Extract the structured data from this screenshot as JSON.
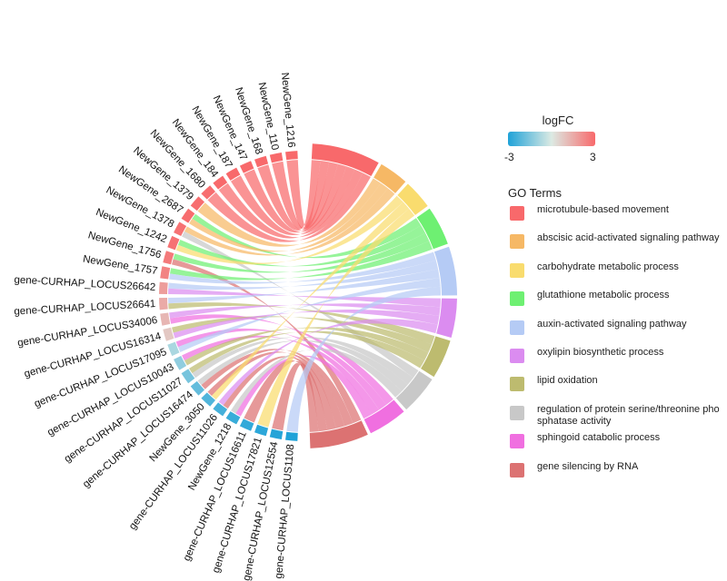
{
  "chart_data": {
    "type": "chord",
    "genes": [
      {
        "name": "NewGene_1216",
        "logFC": 3,
        "terms": [
          0
        ]
      },
      {
        "name": "NewGene_110",
        "logFC": 3,
        "terms": [
          0
        ]
      },
      {
        "name": "NewGene_168",
        "logFC": 3,
        "terms": [
          0
        ]
      },
      {
        "name": "NewGene_147",
        "logFC": 3,
        "terms": [
          0
        ]
      },
      {
        "name": "NewGene_187",
        "logFC": 3,
        "terms": [
          0
        ]
      },
      {
        "name": "NewGene_184",
        "logFC": 3,
        "terms": [
          0
        ]
      },
      {
        "name": "NewGene_1680",
        "logFC": 2.9,
        "terms": [
          0
        ]
      },
      {
        "name": "NewGene_1379",
        "logFC": 2.9,
        "terms": [
          1
        ]
      },
      {
        "name": "NewGene_2687",
        "logFC": 2.9,
        "terms": [
          3,
          1
        ]
      },
      {
        "name": "NewGene_1378",
        "logFC": 2.8,
        "terms": [
          1,
          7
        ]
      },
      {
        "name": "NewGene_1242",
        "logFC": 2.8,
        "terms": [
          3,
          2
        ]
      },
      {
        "name": "NewGene_1756",
        "logFC": 2.6,
        "terms": [
          3,
          9
        ]
      },
      {
        "name": "NewGene_1757",
        "logFC": 2.4,
        "terms": [
          3,
          4
        ]
      },
      {
        "name": "gene-CURHAP_LOCUS26642",
        "logFC": 1.8,
        "terms": [
          4,
          5
        ]
      },
      {
        "name": "gene-CURHAP_LOCUS26641",
        "logFC": 1.5,
        "terms": [
          4,
          6
        ]
      },
      {
        "name": "gene-CURHAP_LOCUS34006",
        "logFC": 1.2,
        "terms": [
          5,
          8
        ]
      },
      {
        "name": "gene-CURHAP_LOCUS16314",
        "logFC": 0.8,
        "terms": [
          6,
          5
        ]
      },
      {
        "name": "gene-CURHAP_LOCUS17095",
        "logFC": -0.8,
        "terms": [
          8,
          4
        ]
      },
      {
        "name": "gene-CURHAP_LOCUS10043",
        "logFC": -1.2,
        "terms": [
          8,
          6
        ]
      },
      {
        "name": "gene-CURHAP_LOCUS11027",
        "logFC": -1.6,
        "terms": [
          6,
          7
        ]
      },
      {
        "name": "gene-CURHAP_LOCUS16474",
        "logFC": -1.9,
        "terms": [
          7,
          9
        ]
      },
      {
        "name": "NewGene_3050",
        "logFC": -2.2,
        "terms": [
          9,
          2
        ]
      },
      {
        "name": "gene-CURHAP_LOCUS11026",
        "logFC": -2.4,
        "terms": [
          5,
          9
        ]
      },
      {
        "name": "NewGene_1218",
        "logFC": -2.6,
        "terms": [
          7,
          8
        ]
      },
      {
        "name": "gene-CURHAP_LOCUS16611",
        "logFC": -2.7,
        "terms": [
          9
        ]
      },
      {
        "name": "gene-CURHAP_LOCUS17821",
        "logFC": -2.8,
        "terms": [
          2
        ]
      },
      {
        "name": "gene-CURHAP_LOCUS12554",
        "logFC": -2.9,
        "terms": [
          9
        ]
      },
      {
        "name": "gene-CURHAP_LOCUS1108",
        "logFC": -3,
        "terms": [
          4
        ]
      }
    ],
    "terms": [
      {
        "name": "microtubule-based movement",
        "color": "#F8696B"
      },
      {
        "name": "abscisic acid-activated signaling pathway",
        "color": "#F6B865"
      },
      {
        "name": "carbohydrate metabolic process",
        "color": "#F9DC6E"
      },
      {
        "name": "glutathione metabolic process",
        "color": "#6EF072"
      },
      {
        "name": "auxin-activated signaling pathway",
        "color": "#B5CBF5"
      },
      {
        "name": "oxylipin biosynthetic process",
        "color": "#DB8CF0"
      },
      {
        "name": "lipid oxidation",
        "color": "#BDBB6F"
      },
      {
        "name": "regulation of protein serine/threonine phosphatase activity",
        "color": "#C8C8C8"
      },
      {
        "name": "sphingoid catabolic process",
        "color": "#F06FE0"
      },
      {
        "name": "gene silencing by RNA",
        "color": "#DC7272"
      }
    ],
    "logfc_legend": {
      "title": "logFC",
      "min": "-3",
      "max": "3",
      "colors": [
        "#1FA2D8",
        "#DCEAE3",
        "#F8696B"
      ]
    },
    "terms_legend_title": "GO Terms"
  }
}
